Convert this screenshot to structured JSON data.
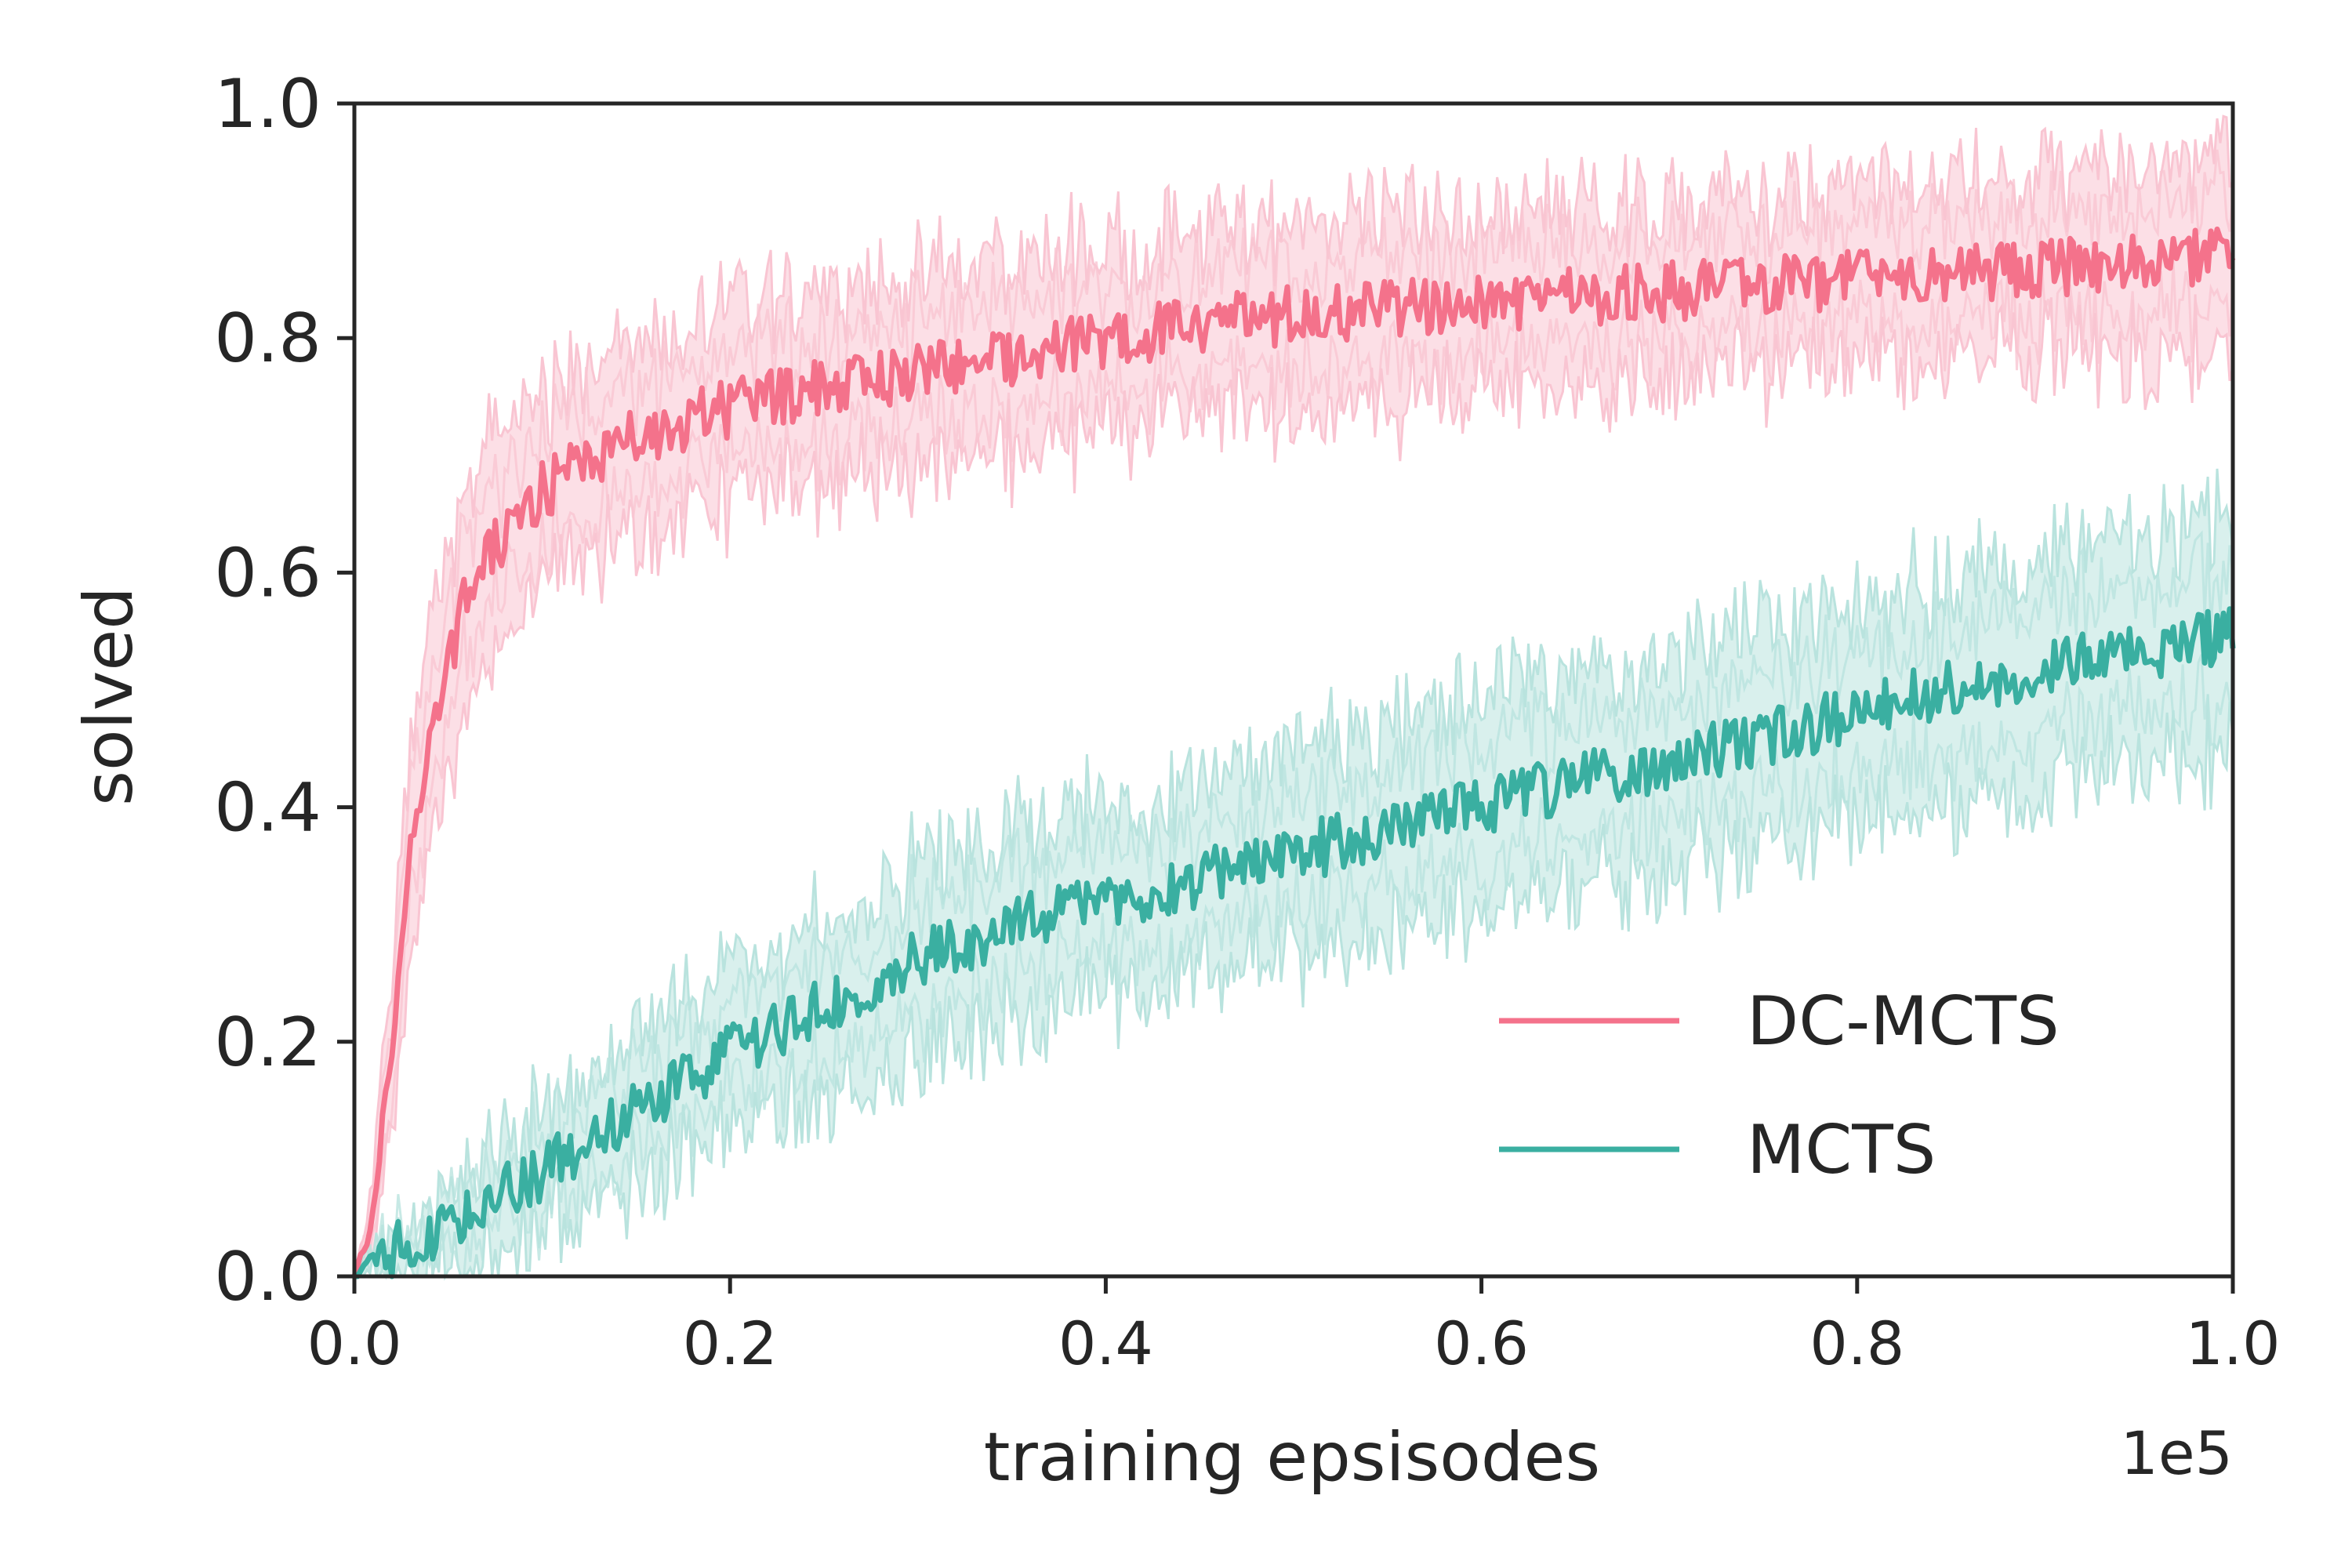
{
  "chart_data": {
    "type": "line",
    "title": "",
    "xlabel": "training epsisodes",
    "ylabel": "solved",
    "x_offset_label": "1e5",
    "xlim": [
      0.0,
      1.0
    ],
    "ylim": [
      0.0,
      1.0
    ],
    "xticks": [
      "0.0",
      "0.2",
      "0.4",
      "0.6",
      "0.8",
      "1.0"
    ],
    "yticks": [
      "0.0",
      "0.2",
      "0.4",
      "0.6",
      "0.8",
      "1.0"
    ],
    "grid": false,
    "legend_position": "lower-right",
    "series": [
      {
        "name": "DC-MCTS",
        "color": "#f4728b",
        "band_color": "#f9c5d2",
        "x": [
          0.0,
          0.01,
          0.02,
          0.03,
          0.04,
          0.05,
          0.06,
          0.07,
          0.08,
          0.09,
          0.1,
          0.12,
          0.14,
          0.16,
          0.18,
          0.2,
          0.25,
          0.3,
          0.35,
          0.4,
          0.45,
          0.5,
          0.55,
          0.6,
          0.65,
          0.7,
          0.75,
          0.8,
          0.85,
          0.9,
          0.95,
          1.0
        ],
        "mean": [
          0.0,
          0.05,
          0.2,
          0.36,
          0.46,
          0.52,
          0.58,
          0.61,
          0.63,
          0.65,
          0.67,
          0.69,
          0.71,
          0.72,
          0.73,
          0.74,
          0.76,
          0.77,
          0.785,
          0.8,
          0.81,
          0.82,
          0.825,
          0.83,
          0.835,
          0.84,
          0.845,
          0.85,
          0.855,
          0.86,
          0.865,
          0.87
        ],
        "band_halfwidth": [
          0.0,
          0.03,
          0.07,
          0.09,
          0.09,
          0.09,
          0.09,
          0.09,
          0.085,
          0.085,
          0.08,
          0.08,
          0.08,
          0.08,
          0.08,
          0.08,
          0.08,
          0.08,
          0.08,
          0.08,
          0.08,
          0.08,
          0.08,
          0.075,
          0.075,
          0.075,
          0.075,
          0.075,
          0.075,
          0.075,
          0.08,
          0.08
        ],
        "noise": 0.025
      },
      {
        "name": "MCTS",
        "color": "#3aafa1",
        "band_color": "#b9e3de",
        "x": [
          0.0,
          0.02,
          0.04,
          0.06,
          0.08,
          0.1,
          0.12,
          0.15,
          0.2,
          0.25,
          0.3,
          0.35,
          0.4,
          0.45,
          0.5,
          0.55,
          0.6,
          0.65,
          0.7,
          0.75,
          0.8,
          0.85,
          0.9,
          0.95,
          1.0
        ],
        "mean": [
          0.0,
          0.02,
          0.03,
          0.05,
          0.07,
          0.09,
          0.11,
          0.14,
          0.19,
          0.23,
          0.27,
          0.3,
          0.32,
          0.34,
          0.36,
          0.38,
          0.4,
          0.42,
          0.44,
          0.46,
          0.48,
          0.5,
          0.52,
          0.53,
          0.55
        ],
        "band_halfwidth": [
          0.0,
          0.02,
          0.03,
          0.04,
          0.05,
          0.05,
          0.06,
          0.06,
          0.07,
          0.07,
          0.08,
          0.08,
          0.08,
          0.08,
          0.085,
          0.085,
          0.09,
          0.09,
          0.09,
          0.09,
          0.09,
          0.095,
          0.095,
          0.095,
          0.1
        ],
        "noise": 0.025
      }
    ]
  }
}
